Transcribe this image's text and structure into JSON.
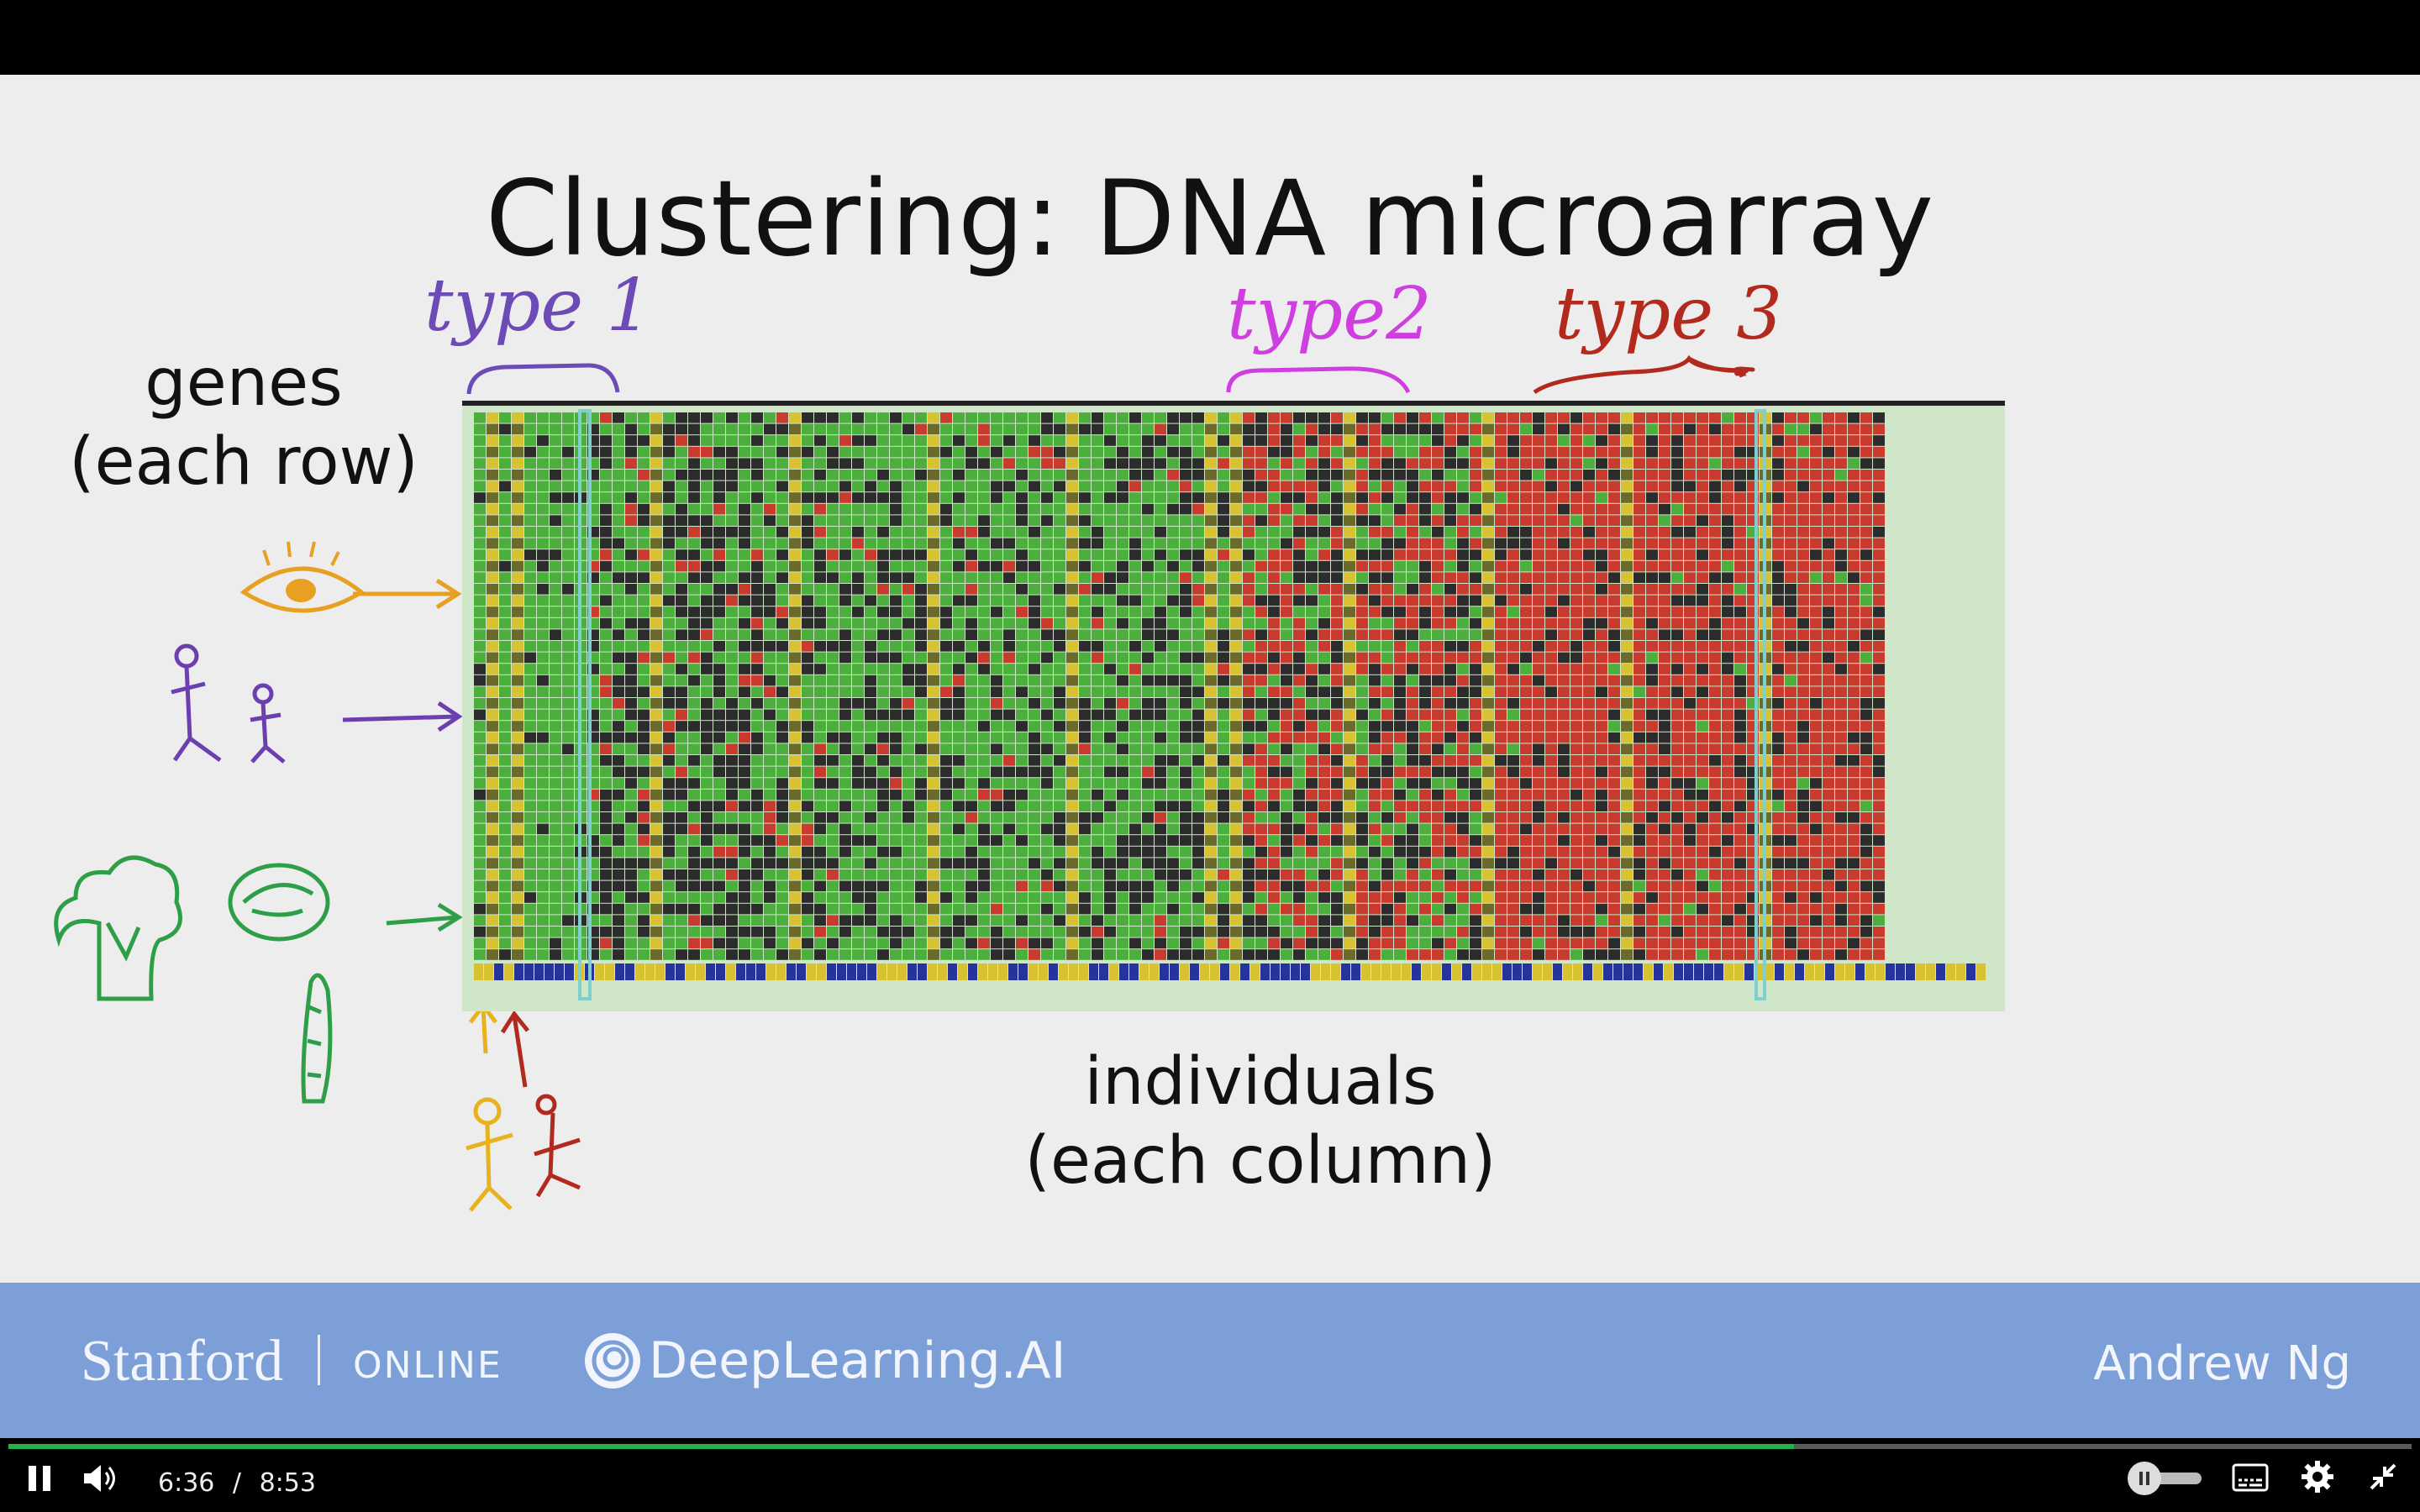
{
  "slide": {
    "title": "Clustering: DNA microarray",
    "row_label_line1": "genes",
    "row_label_line2": "(each row)",
    "col_label_line1": "individuals",
    "col_label_line2": "(each column)",
    "annotations": [
      {
        "text": "type 1",
        "color": "#6c4bb6"
      },
      {
        "text": "type2",
        "color": "#cf3fe0"
      },
      {
        "text": "type 3",
        "color": "#b22a1e"
      }
    ],
    "colors": {
      "green": "#4caf3d",
      "red": "#c83b2e",
      "dark": "#2c2c2c",
      "yellow": "#d8c232",
      "blue": "#25339a"
    }
  },
  "footer": {
    "stanford": "Stanford",
    "online": "ONLINE",
    "deeplearning": "DeepLearning.AI",
    "presenter": "Andrew Ng"
  },
  "player": {
    "current_time": "6:36",
    "separator": "/",
    "duration": "8:53",
    "progress_fraction": 0.743,
    "icons": [
      "pause-icon",
      "volume-icon",
      "playback-speed-toggle",
      "captions-icon",
      "settings-gear-icon",
      "exit-fullscreen-icon"
    ]
  }
}
